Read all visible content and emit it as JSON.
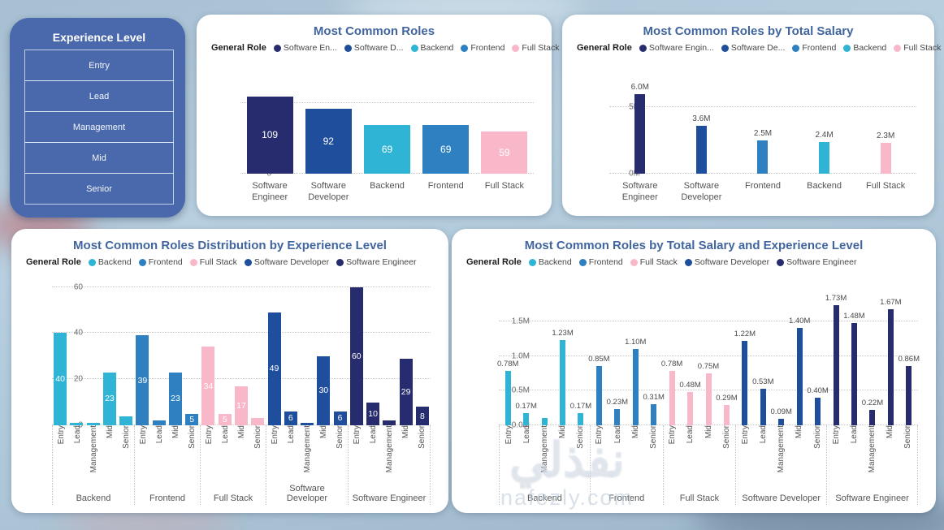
{
  "colors": {
    "navy": "#272c6e",
    "blue_dark": "#1f4e9c",
    "teal": "#2fb4d5",
    "blue": "#2e80c0",
    "pink": "#f8b8c9",
    "title": "#41659e",
    "slicer_bg": "#4a69ac"
  },
  "slicer": {
    "title": "Experience Level",
    "items": [
      "Entry",
      "Lead",
      "Management",
      "Mid",
      "Senior"
    ]
  },
  "watermark": {
    "arabic": "نفذلي",
    "domain": "nafezly.com"
  },
  "chart_data": [
    {
      "type": "bar",
      "title": "Most Common Roles",
      "legend_title": "General Role",
      "legend": [
        {
          "label": "Software En...",
          "color": "navy"
        },
        {
          "label": "Software D...",
          "color": "blue_dark"
        },
        {
          "label": "Backend",
          "color": "teal"
        },
        {
          "label": "Frontend",
          "color": "blue"
        },
        {
          "label": "Full Stack",
          "color": "pink"
        }
      ],
      "ylim": [
        0,
        112
      ],
      "yticks": [
        {
          "v": 0,
          "label": "0"
        },
        {
          "v": 100,
          "label": "100"
        }
      ],
      "label_position": "inside",
      "xlabel_mode": "horizontal",
      "groups": [
        {
          "name": "Software Engineer",
          "color": "navy",
          "bars": [
            {
              "v": 109,
              "label": "109"
            }
          ]
        },
        {
          "name": "Software Developer",
          "color": "blue_dark",
          "bars": [
            {
              "v": 92,
              "label": "92"
            }
          ]
        },
        {
          "name": "Backend",
          "color": "teal",
          "bars": [
            {
              "v": 69,
              "label": "69"
            }
          ]
        },
        {
          "name": "Frontend",
          "color": "blue",
          "bars": [
            {
              "v": 69,
              "label": "69"
            }
          ]
        },
        {
          "name": "Full Stack",
          "color": "pink",
          "bars": [
            {
              "v": 59,
              "label": "59"
            }
          ]
        }
      ]
    },
    {
      "type": "bar",
      "title": "Most Common Roles by Total Salary",
      "legend_title": "General Role",
      "legend": [
        {
          "label": "Software Engin...",
          "color": "navy"
        },
        {
          "label": "Software De...",
          "color": "blue_dark"
        },
        {
          "label": "Frontend",
          "color": "blue"
        },
        {
          "label": "Backend",
          "color": "teal"
        },
        {
          "label": "Full Stack",
          "color": "pink"
        }
      ],
      "ylim": [
        0,
        6.35
      ],
      "yticks": [
        {
          "v": 0,
          "label": "0M"
        },
        {
          "v": 5,
          "label": "5M"
        }
      ],
      "label_position": "above",
      "xlabel_mode": "horizontal",
      "groups": [
        {
          "name": "Software Engineer",
          "color": "navy",
          "bars": [
            {
              "v": 6.0,
              "label": "6.0M"
            }
          ]
        },
        {
          "name": "Software Developer",
          "color": "blue_dark",
          "bars": [
            {
              "v": 3.6,
              "label": "3.6M"
            }
          ]
        },
        {
          "name": "Frontend",
          "color": "blue",
          "bars": [
            {
              "v": 2.5,
              "label": "2.5M"
            }
          ]
        },
        {
          "name": "Backend",
          "color": "teal",
          "bars": [
            {
              "v": 2.4,
              "label": "2.4M"
            }
          ]
        },
        {
          "name": "Full Stack",
          "color": "pink",
          "bars": [
            {
              "v": 2.3,
              "label": "2.3M"
            }
          ]
        }
      ]
    },
    {
      "type": "bar",
      "title": "Most Common Roles Distribution by Experience Level",
      "legend_title": "General Role",
      "legend": [
        {
          "label": "Backend",
          "color": "teal"
        },
        {
          "label": "Frontend",
          "color": "blue"
        },
        {
          "label": "Full Stack",
          "color": "pink"
        },
        {
          "label": "Software Developer",
          "color": "blue_dark"
        },
        {
          "label": "Software Engineer",
          "color": "navy"
        }
      ],
      "ylim": [
        0,
        62
      ],
      "yticks": [
        {
          "v": 0,
          "label": "0"
        },
        {
          "v": 20,
          "label": "20"
        },
        {
          "v": 40,
          "label": "40"
        },
        {
          "v": 60,
          "label": "60"
        }
      ],
      "label_position": "inside",
      "xlabel_mode": "rotated",
      "groups": [
        {
          "name": "Backend",
          "color": "teal",
          "bars": [
            {
              "x": "Entry",
              "v": 40,
              "label": "40"
            },
            {
              "x": "Lead",
              "v": 1,
              "label": null
            },
            {
              "x": "Management",
              "v": 1,
              "label": null
            },
            {
              "x": "Mid",
              "v": 23,
              "label": "23"
            },
            {
              "x": "Senior",
              "v": 4,
              "label": null
            }
          ]
        },
        {
          "name": "Frontend",
          "color": "blue",
          "bars": [
            {
              "x": "Entry",
              "v": 39,
              "label": "39"
            },
            {
              "x": "Lead",
              "v": 2,
              "label": null
            },
            {
              "x": "Mid",
              "v": 23,
              "label": "23"
            },
            {
              "x": "Senior",
              "v": 5,
              "label": "5"
            }
          ]
        },
        {
          "name": "Full Stack",
          "color": "pink",
          "bars": [
            {
              "x": "Entry",
              "v": 34,
              "label": "34"
            },
            {
              "x": "Lead",
              "v": 5,
              "label": "5"
            },
            {
              "x": "Mid",
              "v": 17,
              "label": "17"
            },
            {
              "x": "Senior",
              "v": 3,
              "label": null
            }
          ]
        },
        {
          "name": "Software Developer",
          "color": "blue_dark",
          "bars": [
            {
              "x": "Entry",
              "v": 49,
              "label": "49"
            },
            {
              "x": "Lead",
              "v": 6,
              "label": "6"
            },
            {
              "x": "Management",
              "v": 1,
              "label": null
            },
            {
              "x": "Mid",
              "v": 30,
              "label": "30"
            },
            {
              "x": "Senior",
              "v": 6,
              "label": "6"
            }
          ]
        },
        {
          "name": "Software Engineer",
          "color": "navy",
          "bars": [
            {
              "x": "Entry",
              "v": 60,
              "label": "60"
            },
            {
              "x": "Lead",
              "v": 10,
              "label": "10"
            },
            {
              "x": "Management",
              "v": 2,
              "label": null
            },
            {
              "x": "Mid",
              "v": 29,
              "label": "29"
            },
            {
              "x": "Senior",
              "v": 8,
              "label": "8"
            }
          ]
        }
      ]
    },
    {
      "type": "bar",
      "title": "Most Common Roles by Total Salary and Experience Level",
      "legend_title": "General Role",
      "legend": [
        {
          "label": "Backend",
          "color": "teal"
        },
        {
          "label": "Frontend",
          "color": "blue"
        },
        {
          "label": "Full Stack",
          "color": "pink"
        },
        {
          "label": "Software Developer",
          "color": "blue_dark"
        },
        {
          "label": "Software Engineer",
          "color": "navy"
        }
      ],
      "ylim": [
        0,
        1.85
      ],
      "yticks": [
        {
          "v": 0,
          "label": "0.0M"
        },
        {
          "v": 0.5,
          "label": "0.5M"
        },
        {
          "v": 1.0,
          "label": "1.0M"
        },
        {
          "v": 1.5,
          "label": "1.5M"
        }
      ],
      "label_position": "above",
      "xlabel_mode": "rotated",
      "groups": [
        {
          "name": "Backend",
          "color": "teal",
          "bars": [
            {
              "x": "Entry",
              "v": 0.78,
              "label": "0.78M"
            },
            {
              "x": "Lead",
              "v": 0.17,
              "label": "0.17M"
            },
            {
              "x": "Management",
              "v": 0.1,
              "label": null
            },
            {
              "x": "Mid",
              "v": 1.23,
              "label": "1.23M"
            },
            {
              "x": "Senior",
              "v": 0.17,
              "label": "0.17M"
            }
          ]
        },
        {
          "name": "Frontend",
          "color": "blue",
          "bars": [
            {
              "x": "Entry",
              "v": 0.85,
              "label": "0.85M"
            },
            {
              "x": "Lead",
              "v": 0.23,
              "label": "0.23M"
            },
            {
              "x": "Mid",
              "v": 1.1,
              "label": "1.10M"
            },
            {
              "x": "Senior",
              "v": 0.31,
              "label": "0.31M"
            }
          ]
        },
        {
          "name": "Full Stack",
          "color": "pink",
          "bars": [
            {
              "x": "Entry",
              "v": 0.78,
              "label": "0.78M"
            },
            {
              "x": "Lead",
              "v": 0.48,
              "label": "0.48M"
            },
            {
              "x": "Mid",
              "v": 0.75,
              "label": "0.75M"
            },
            {
              "x": "Senior",
              "v": 0.29,
              "label": "0.29M"
            }
          ]
        },
        {
          "name": "Software Developer",
          "color": "blue_dark",
          "bars": [
            {
              "x": "Entry",
              "v": 1.22,
              "label": "1.22M"
            },
            {
              "x": "Lead",
              "v": 0.53,
              "label": "0.53M"
            },
            {
              "x": "Management",
              "v": 0.09,
              "label": "0.09M"
            },
            {
              "x": "Mid",
              "v": 1.4,
              "label": "1.40M"
            },
            {
              "x": "Senior",
              "v": 0.4,
              "label": "0.40M"
            }
          ]
        },
        {
          "name": "Software Engineer",
          "color": "navy",
          "bars": [
            {
              "x": "Entry",
              "v": 1.73,
              "label": "1.73M"
            },
            {
              "x": "Lead",
              "v": 1.48,
              "label": "1.48M"
            },
            {
              "x": "Management",
              "v": 0.22,
              "label": "0.22M"
            },
            {
              "x": "Mid",
              "v": 1.67,
              "label": "1.67M"
            },
            {
              "x": "Senior",
              "v": 0.86,
              "label": "0.86M"
            }
          ]
        }
      ]
    }
  ]
}
